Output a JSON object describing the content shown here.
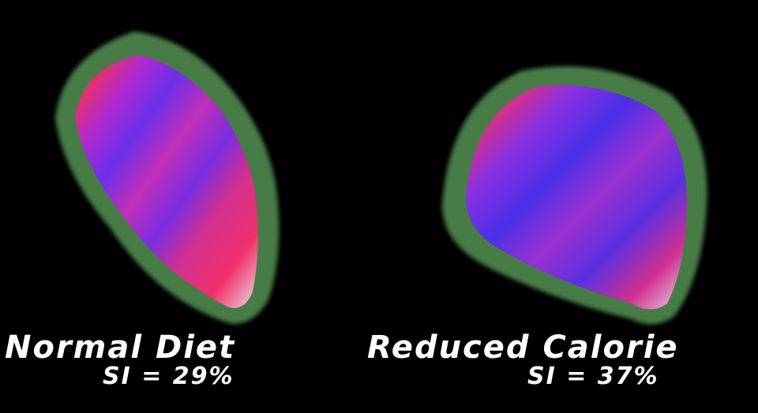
{
  "panels": [
    {
      "title": "Normal Diet",
      "si": "SI = 29%"
    },
    {
      "title": "Reduced Calorie",
      "si": "SI = 37%"
    }
  ],
  "colors": {
    "background": "#000000",
    "shell": "#4f8a4f",
    "inner_blue": "#5a2ee0",
    "inner_red": "#f0306a",
    "text": "#ffffff"
  }
}
